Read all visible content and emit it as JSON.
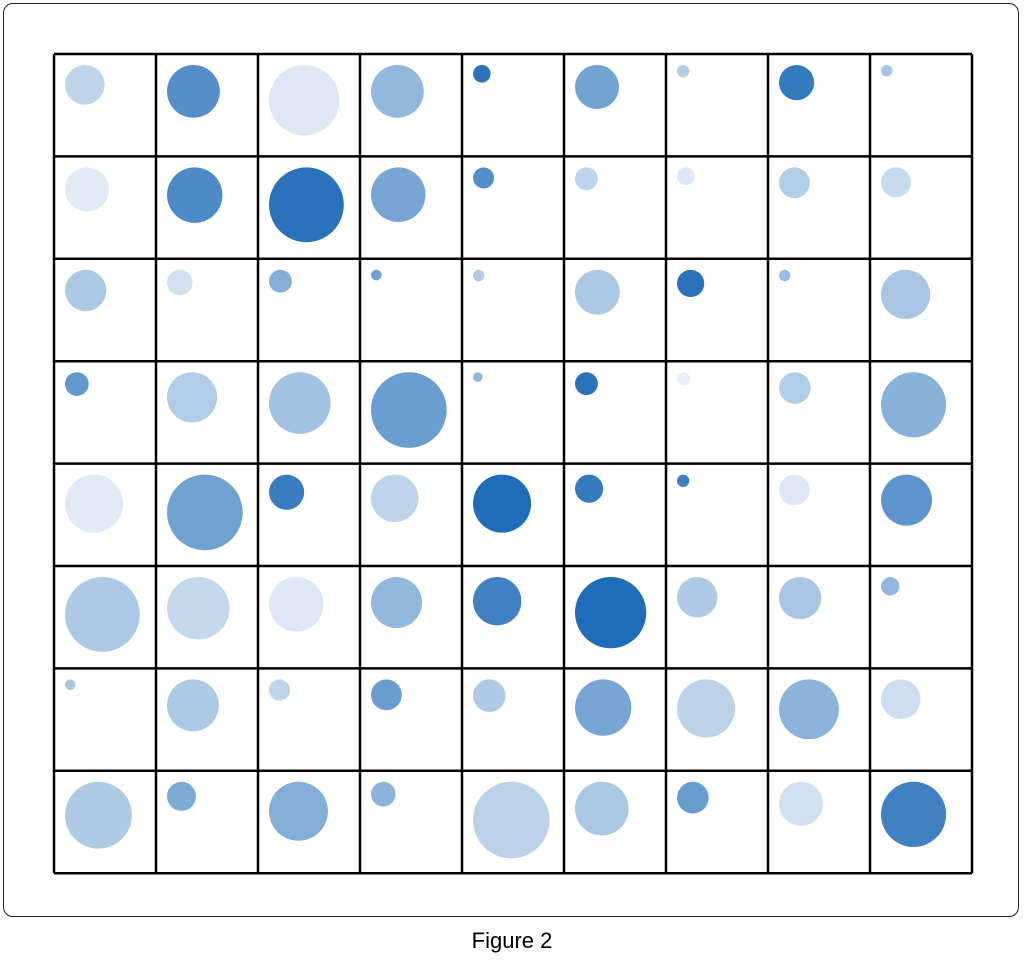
{
  "caption": "Figure 2",
  "colors": {
    "base": "#ffffff",
    "accent": "#1f6cb8",
    "grid": "#000000"
  },
  "chart_data": {
    "type": "bubble-grid",
    "title": "",
    "nrows": 8,
    "ncols": 9,
    "size_range": [
      0,
      1
    ],
    "color_range": [
      0,
      1
    ],
    "cells": [
      [
        {
          "size": 0.45,
          "color": 0.25
        },
        {
          "size": 0.6,
          "color": 0.75
        },
        {
          "size": 0.8,
          "color": 0.1
        },
        {
          "size": 0.6,
          "color": 0.45
        },
        {
          "size": 0.2,
          "color": 0.95
        },
        {
          "size": 0.5,
          "color": 0.6
        },
        {
          "size": 0.14,
          "color": 0.3
        },
        {
          "size": 0.4,
          "color": 0.9
        },
        {
          "size": 0.13,
          "color": 0.35
        }
      ],
      [
        {
          "size": 0.5,
          "color": 0.08
        },
        {
          "size": 0.63,
          "color": 0.78
        },
        {
          "size": 0.85,
          "color": 0.95
        },
        {
          "size": 0.62,
          "color": 0.58
        },
        {
          "size": 0.24,
          "color": 0.75
        },
        {
          "size": 0.26,
          "color": 0.25
        },
        {
          "size": 0.2,
          "color": 0.1
        },
        {
          "size": 0.35,
          "color": 0.3
        },
        {
          "size": 0.34,
          "color": 0.2
        }
      ],
      [
        {
          "size": 0.47,
          "color": 0.33
        },
        {
          "size": 0.29,
          "color": 0.15
        },
        {
          "size": 0.26,
          "color": 0.52
        },
        {
          "size": 0.12,
          "color": 0.62
        },
        {
          "size": 0.13,
          "color": 0.32
        },
        {
          "size": 0.51,
          "color": 0.33
        },
        {
          "size": 0.31,
          "color": 0.95
        },
        {
          "size": 0.13,
          "color": 0.42
        },
        {
          "size": 0.56,
          "color": 0.35
        }
      ],
      [
        {
          "size": 0.27,
          "color": 0.68
        },
        {
          "size": 0.57,
          "color": 0.3
        },
        {
          "size": 0.7,
          "color": 0.38
        },
        {
          "size": 0.86,
          "color": 0.64
        },
        {
          "size": 0.11,
          "color": 0.45
        },
        {
          "size": 0.26,
          "color": 0.95
        },
        {
          "size": 0.15,
          "color": 0.05
        },
        {
          "size": 0.36,
          "color": 0.3
        },
        {
          "size": 0.74,
          "color": 0.5
        }
      ],
      [
        {
          "size": 0.66,
          "color": 0.08
        },
        {
          "size": 0.86,
          "color": 0.62
        },
        {
          "size": 0.4,
          "color": 0.88
        },
        {
          "size": 0.54,
          "color": 0.25
        },
        {
          "size": 0.66,
          "color": 1.0
        },
        {
          "size": 0.32,
          "color": 0.9
        },
        {
          "size": 0.14,
          "color": 0.85
        },
        {
          "size": 0.35,
          "color": 0.1
        },
        {
          "size": 0.58,
          "color": 0.7
        }
      ],
      [
        {
          "size": 0.85,
          "color": 0.33
        },
        {
          "size": 0.71,
          "color": 0.22
        },
        {
          "size": 0.62,
          "color": 0.1
        },
        {
          "size": 0.58,
          "color": 0.45
        },
        {
          "size": 0.55,
          "color": 0.85
        },
        {
          "size": 0.81,
          "color": 1.0
        },
        {
          "size": 0.46,
          "color": 0.32
        },
        {
          "size": 0.48,
          "color": 0.35
        },
        {
          "size": 0.21,
          "color": 0.45
        }
      ],
      [
        {
          "size": 0.12,
          "color": 0.35
        },
        {
          "size": 0.59,
          "color": 0.33
        },
        {
          "size": 0.24,
          "color": 0.25
        },
        {
          "size": 0.35,
          "color": 0.65
        },
        {
          "size": 0.37,
          "color": 0.32
        },
        {
          "size": 0.64,
          "color": 0.58
        },
        {
          "size": 0.66,
          "color": 0.26
        },
        {
          "size": 0.68,
          "color": 0.48
        },
        {
          "size": 0.45,
          "color": 0.18
        }
      ],
      [
        {
          "size": 0.76,
          "color": 0.32
        },
        {
          "size": 0.33,
          "color": 0.55
        },
        {
          "size": 0.67,
          "color": 0.52
        },
        {
          "size": 0.28,
          "color": 0.48
        },
        {
          "size": 0.87,
          "color": 0.26
        },
        {
          "size": 0.61,
          "color": 0.34
        },
        {
          "size": 0.36,
          "color": 0.65
        },
        {
          "size": 0.5,
          "color": 0.15
        },
        {
          "size": 0.74,
          "color": 0.85
        }
      ]
    ]
  }
}
